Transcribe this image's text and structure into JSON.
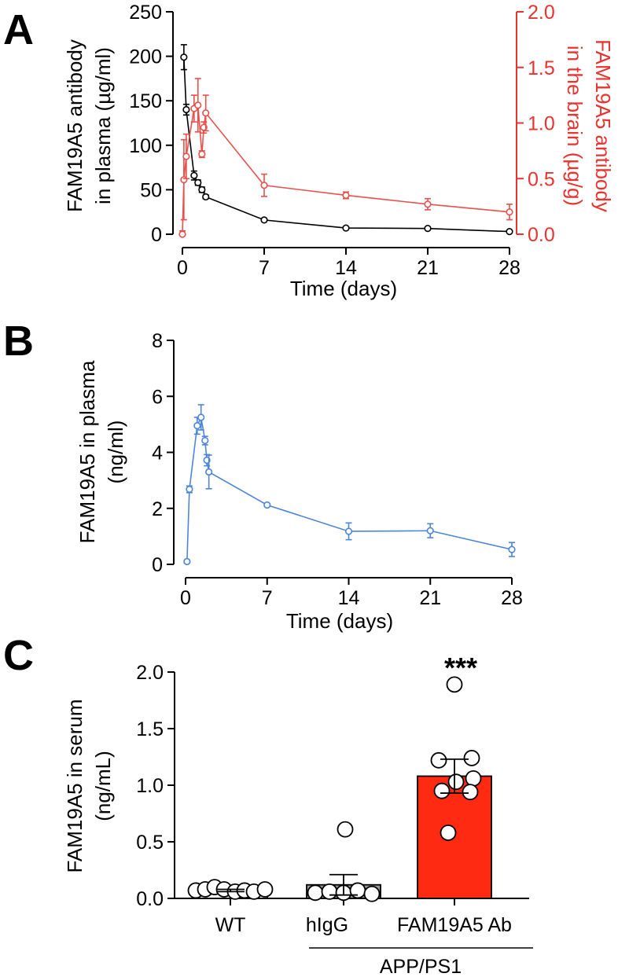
{
  "panels": {
    "a": {
      "letter": "A"
    },
    "b": {
      "letter": "B"
    },
    "c": {
      "letter": "C"
    }
  },
  "colors": {
    "black": "#000000",
    "red": "#e8504c",
    "red_axis": "#e8332f",
    "blue": "#4d86d6",
    "bar_red": "#ff2a12",
    "bar_gray": "#9a9a9a"
  },
  "chart_data": [
    {
      "id": "A",
      "type": "line",
      "xlabel": "Time (days)",
      "xlim": [
        0,
        28
      ],
      "xticks": [
        0,
        7,
        14,
        21,
        28
      ],
      "ylabel_lines": [
        "FAM19A5 antibody",
        "in plasma (µg/ml)"
      ],
      "ylim": [
        0,
        250
      ],
      "yticks": [
        0,
        50,
        100,
        150,
        200,
        250
      ],
      "y2label_lines": [
        "FAM19A5 antibody",
        "in the brain (µg/g)"
      ],
      "y2lim": [
        0,
        2.0
      ],
      "y2ticks": [
        "0.0",
        "0.5",
        "1.0",
        "1.5",
        "2.0"
      ],
      "series": [
        {
          "name": "plasma",
          "axis": "left",
          "x": [
            0.125,
            0.33,
            1,
            1.33,
            1.67,
            2,
            7,
            14,
            21,
            28
          ],
          "y": [
            199,
            140,
            66,
            58,
            50,
            42,
            16,
            7,
            6.5,
            3
          ],
          "err": [
            14,
            6,
            5,
            3,
            3,
            2,
            1.5,
            1,
            1,
            0.5
          ]
        },
        {
          "name": "brain",
          "axis": "right",
          "x": [
            0,
            0.125,
            0.33,
            1,
            1.33,
            1.67,
            1.83,
            2,
            7,
            14,
            21,
            28
          ],
          "y": [
            0.0,
            0.49,
            0.7,
            1.13,
            1.16,
            0.72,
            0.96,
            1.09,
            0.44,
            0.35,
            0.27,
            0.2
          ],
          "err": [
            0.03,
            0.36,
            0.2,
            0.12,
            0.24,
            0.03,
            0.05,
            0.16,
            0.1,
            0.03,
            0.05,
            0.07
          ]
        }
      ]
    },
    {
      "id": "B",
      "type": "line",
      "xlabel": "Time (days)",
      "xlim": [
        0,
        28
      ],
      "xticks": [
        0,
        7,
        14,
        21,
        28
      ],
      "ylabel_lines": [
        "FAM19A5 in plasma",
        "(ng/ml)"
      ],
      "ylim": [
        0,
        8
      ],
      "yticks": [
        0,
        2,
        4,
        6,
        8
      ],
      "series": [
        {
          "name": "FAM19A5",
          "x": [
            0.125,
            0.33,
            1,
            1.33,
            1.67,
            1.83,
            2,
            7,
            14,
            21,
            28
          ],
          "y": [
            0.1,
            2.68,
            4.95,
            5.25,
            4.42,
            3.72,
            3.3,
            2.12,
            1.18,
            1.2,
            0.53
          ],
          "err": [
            0.05,
            0.12,
            0.3,
            0.45,
            0.15,
            0.2,
            0.6,
            0.05,
            0.3,
            0.25,
            0.25
          ]
        }
      ]
    },
    {
      "id": "C",
      "type": "bar",
      "ylabel_lines": [
        "FAM19A5 in serum",
        "(ng/mL)"
      ],
      "ylim": [
        0,
        2.0
      ],
      "yticks": [
        "0.0",
        "0.5",
        "1.0",
        "1.5",
        "2.0"
      ],
      "categories": [
        "WT",
        "hIgG",
        "FAM19A5 Ab"
      ],
      "group_label": "APP/PS1",
      "means": [
        0.07,
        0.12,
        1.08
      ],
      "sem": [
        0.01,
        0.09,
        0.15
      ],
      "points": [
        [
          0.07,
          0.08,
          0.1,
          0.08,
          0.06,
          0.07,
          0.06,
          0.08
        ],
        [
          0.05,
          0.06,
          0.05,
          0.07,
          0.61,
          0.04
        ],
        [
          1.89,
          1.24,
          1.22,
          1.06,
          0.95,
          1.03,
          0.94,
          0.58
        ]
      ],
      "significance": "***"
    }
  ]
}
